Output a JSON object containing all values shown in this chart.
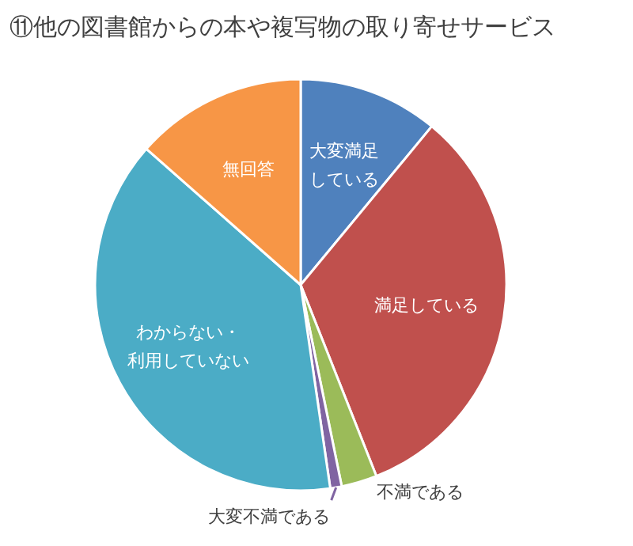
{
  "chart_data": {
    "type": "pie",
    "title": "⑪他の図書館からの本や複写物の取り寄せサービス",
    "categories": [
      "大変満足している",
      "満足している",
      "不満である",
      "大変不満である",
      "わからない・利用していない",
      "無回答"
    ],
    "values": [
      11,
      33,
      2.8,
      0.9,
      38.8,
      13.5
    ],
    "colors": [
      "#4f81bd",
      "#c0504d",
      "#9bbb59",
      "#8064a2",
      "#4bacc6",
      "#f79646"
    ],
    "legend": false
  }
}
